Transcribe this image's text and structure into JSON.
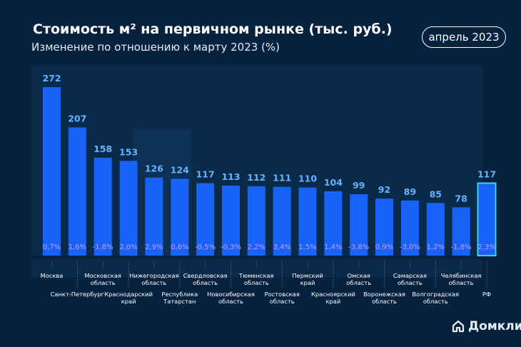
{
  "header": {
    "title": "Стоимость м² на первичном рынке (тыс. руб.)",
    "subtitle": "Изменение по отношению к марту 2023 (%)",
    "date_label": "апрель 2023"
  },
  "brand": {
    "name": "Домклик",
    "icon": "house-icon"
  },
  "colors": {
    "background": "#06223f",
    "bar": "#1862f7",
    "bar_highlight_border": "#35d6ee",
    "value_label": "#65b3ff",
    "change_label": "#c89bf2",
    "category_label": "#ffffff"
  },
  "chart_data": {
    "type": "bar",
    "title": "Стоимость м² на первичном рынке (тыс. руб.)",
    "subtitle": "Изменение по отношению к марту 2023 (%)",
    "categories": [
      "Москва",
      "Санкт-Петербург",
      "Московская область",
      "Краснодарский край",
      "Нижегородская область",
      "Республика Татарстан",
      "Свердловская область",
      "Новосибирская область",
      "Тюменская область",
      "Ростовская область",
      "Пермский край",
      "Красноярский край",
      "Омская область",
      "Воронежская область",
      "Самарская область",
      "Волгоградская область",
      "Челябинская область",
      "РФ"
    ],
    "category_lines": [
      [
        "Москва"
      ],
      [
        "Санкт-Петербург"
      ],
      [
        "Московская",
        "область"
      ],
      [
        "Краснодарский",
        "край"
      ],
      [
        "Нижегородская",
        "область"
      ],
      [
        "Республика",
        "Татарстан"
      ],
      [
        "Свердловская",
        "область"
      ],
      [
        "Новосибирская",
        "область"
      ],
      [
        "Тюменская",
        "область"
      ],
      [
        "Ростовская",
        "область"
      ],
      [
        "Пермский",
        "край"
      ],
      [
        "Красноярский",
        "край"
      ],
      [
        "Омская",
        "область"
      ],
      [
        "Воронежская",
        "область"
      ],
      [
        "Самарская",
        "область"
      ],
      [
        "Волгоградская",
        "область"
      ],
      [
        "Челябинская",
        "область"
      ],
      [
        "РФ"
      ]
    ],
    "series": [
      {
        "values": [
          272,
          207,
          158,
          153,
          126,
          124,
          117,
          113,
          112,
          111,
          110,
          104,
          99,
          92,
          89,
          85,
          78,
          117
        ]
      },
      {
        "values": [
          "0,7%",
          "1,6%",
          "-1,8%",
          "2,0%",
          "2,9%",
          "0,6%",
          "-0,5%",
          "-0,3%",
          "2,2%",
          "3,4%",
          "1,5%",
          "1,4%",
          "-3,8%",
          "0,9%",
          "-3,0%",
          "1,2%",
          "-1,8%",
          "2,3%"
        ]
      }
    ],
    "highlight_category": "РФ",
    "ylim": [
      0,
      272
    ],
    "grid": false,
    "legend": "none"
  }
}
